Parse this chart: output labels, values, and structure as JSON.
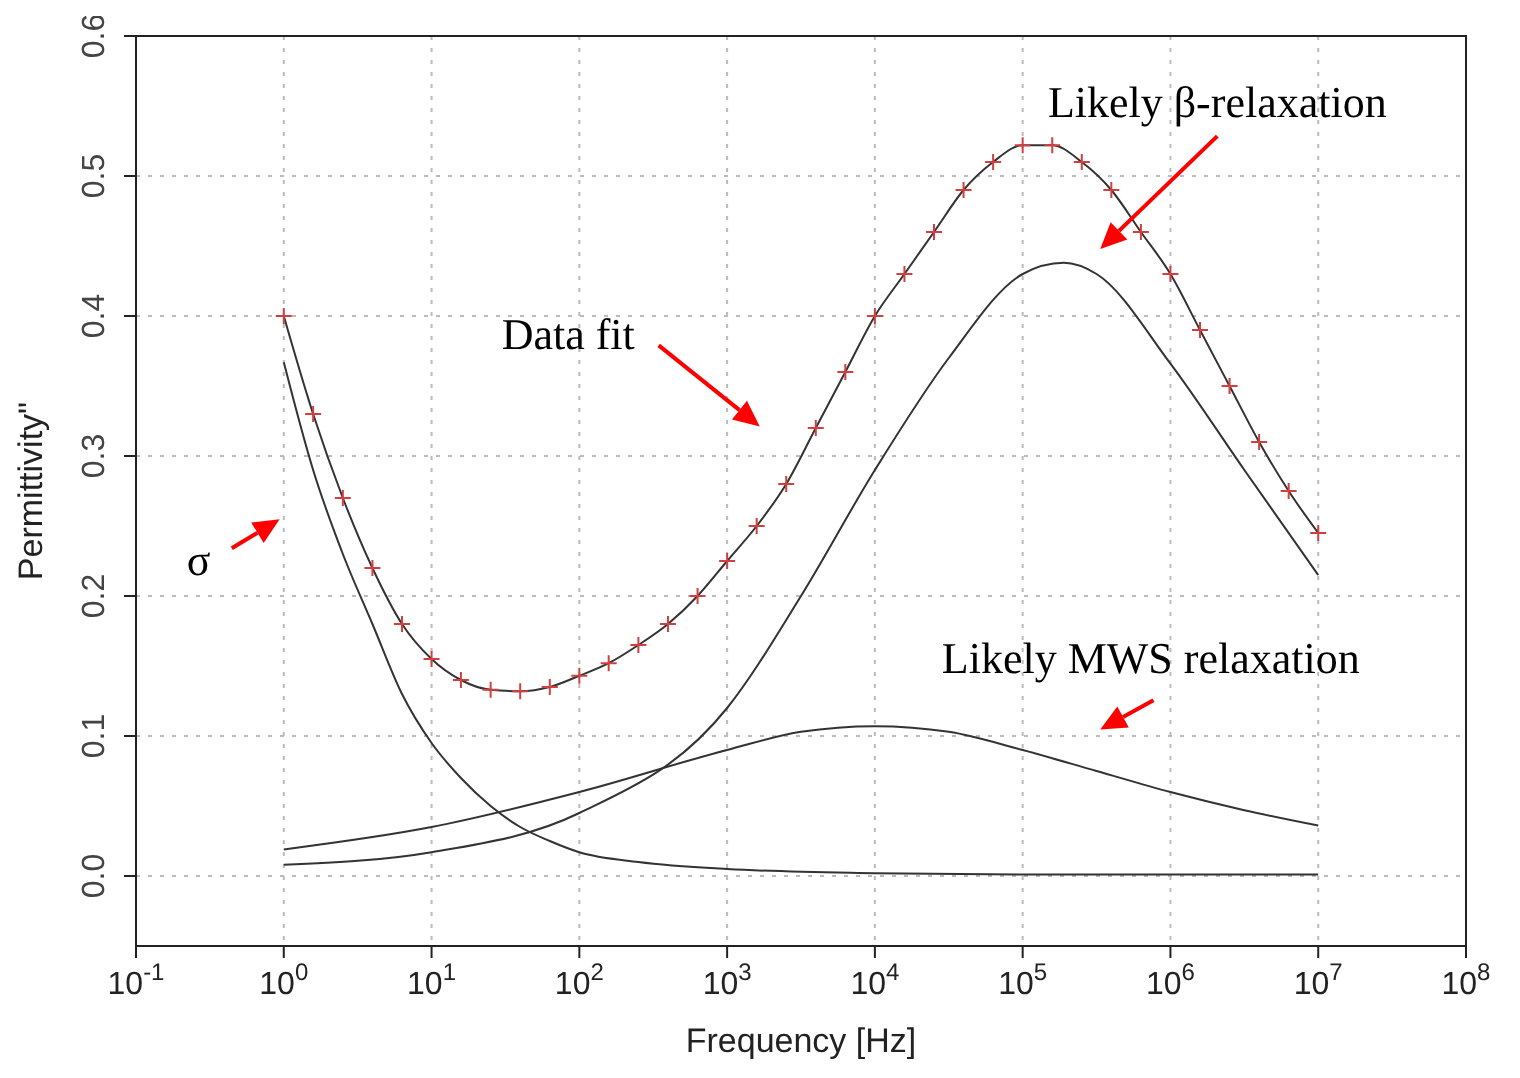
{
  "chart_data": {
    "type": "line",
    "xlabel": "Frequency [Hz]",
    "ylabel": "Permittivity\"",
    "log": "x",
    "grid": true,
    "xlim": [
      0.1,
      100000000
    ],
    "xticks": [
      {
        "value": 0.1,
        "label": "10$^{-1}$"
      },
      {
        "value": 1,
        "label": "10$^{0}$"
      },
      {
        "value": 10,
        "label": "10$^{1}$"
      },
      {
        "value": 100,
        "label": "10$^{2}$"
      },
      {
        "value": 1000,
        "label": "10$^{3}$"
      },
      {
        "value": 10000,
        "label": "10$^{4}$"
      },
      {
        "value": 100000,
        "label": "10$^{5}$"
      },
      {
        "value": 1000000,
        "label": "10$^{6}$"
      },
      {
        "value": 10000000,
        "label": "10$^{7}$"
      },
      {
        "value": 100000000,
        "label": "10$^{8}$"
      }
    ],
    "ylim": [
      -0.05,
      0.6
    ],
    "yticks": [
      {
        "value": 0,
        "label": "0.0"
      },
      0.1,
      0.2,
      0.3,
      0.4,
      0.5,
      0.6
    ],
    "series": [
      {
        "type": "scatter",
        "marker": "cross",
        "color": "#d04040",
        "x": [
          1,
          1.58,
          2.51,
          3.98,
          6.31,
          10,
          15.8,
          25.1,
          39.8,
          63.1,
          100,
          158,
          251,
          398,
          631,
          1000,
          1585,
          2512,
          3981,
          6310,
          10000,
          15850,
          25120,
          39810,
          63100,
          100000,
          158500,
          251200,
          398100,
          631000,
          1000000,
          1585000,
          2512000,
          3981000,
          6310000,
          10000000
        ],
        "values": [
          0.4,
          0.33,
          0.27,
          0.22,
          0.18,
          0.155,
          0.14,
          0.133,
          0.132,
          0.135,
          0.143,
          0.152,
          0.165,
          0.18,
          0.2,
          0.225,
          0.25,
          0.28,
          0.32,
          0.36,
          0.4,
          0.43,
          0.46,
          0.49,
          0.51,
          0.522,
          0.522,
          0.51,
          0.49,
          0.46,
          0.43,
          0.39,
          0.35,
          0.31,
          0.275,
          0.245
        ]
      },
      {
        "color": "#333333",
        "marker": "none",
        "x": [
          1,
          1.58,
          2.51,
          3.98,
          6.31,
          10,
          15.8,
          25.1,
          39.8,
          63.1,
          100,
          158,
          251,
          398,
          631,
          1000,
          1585,
          2512,
          3981,
          6310,
          10000,
          15850,
          25120,
          39810,
          63100,
          100000,
          158500,
          251200,
          398100,
          631000,
          1000000,
          1585000,
          2512000,
          3981000,
          6310000,
          10000000
        ],
        "values": [
          0.4,
          0.33,
          0.27,
          0.22,
          0.18,
          0.155,
          0.14,
          0.133,
          0.132,
          0.135,
          0.143,
          0.152,
          0.165,
          0.18,
          0.2,
          0.225,
          0.25,
          0.28,
          0.32,
          0.36,
          0.4,
          0.43,
          0.46,
          0.49,
          0.51,
          0.522,
          0.522,
          0.51,
          0.49,
          0.46,
          0.43,
          0.39,
          0.35,
          0.31,
          0.275,
          0.245
        ]
      },
      {
        "color": "#333333",
        "marker": "none",
        "x": [
          1,
          1.58,
          2.51,
          3.98,
          6.31,
          10,
          15.8,
          25.1,
          39.8,
          63.1,
          100,
          251,
          1000,
          10000,
          100000,
          10000000
        ],
        "values": [
          0.367,
          0.29,
          0.23,
          0.18,
          0.13,
          0.095,
          0.07,
          0.05,
          0.035,
          0.025,
          0.017,
          0.01,
          0.005,
          0.002,
          0.001,
          0.001
        ]
      },
      {
        "color": "#333333",
        "marker": "none",
        "x": [
          1,
          10,
          100,
          1000,
          3162,
          10000,
          31620,
          100000,
          316200,
          1000000,
          3162000,
          10000000
        ],
        "values": [
          0.019,
          0.035,
          0.06,
          0.09,
          0.103,
          0.107,
          0.103,
          0.09,
          0.075,
          0.06,
          0.047,
          0.036
        ]
      },
      {
        "color": "#333333",
        "marker": "none",
        "x": [
          1,
          10,
          100,
          1000,
          3162,
          10000,
          31620,
          100000,
          190000,
          316200,
          1000000,
          3162000,
          10000000
        ],
        "values": [
          0.008,
          0.017,
          0.045,
          0.12,
          0.2,
          0.29,
          0.37,
          0.43,
          0.438,
          0.43,
          0.366,
          0.29,
          0.215
        ]
      }
    ],
    "annotations": [
      "Data fit",
      "Likely β-relaxation",
      "Likely MWS relaxation",
      "σ"
    ]
  }
}
